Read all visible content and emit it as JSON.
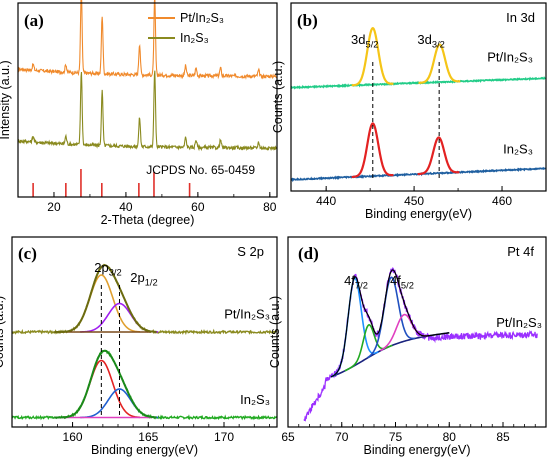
{
  "chart_data": [
    {
      "panel": "(a)",
      "type": "line",
      "xlabel": "2-Theta (degree)",
      "ylabel": "Intensity (a.u.)",
      "xlim": [
        10,
        82
      ],
      "x_ticks": [
        "20",
        "40",
        "60",
        "80"
      ],
      "legend": {
        "placement": "top-right",
        "entries": [
          "Pt/In₂S₃",
          "In₂S₃"
        ]
      },
      "reference": {
        "label": "JCPDS No. 65-0459",
        "color": "#e0302a",
        "positions": [
          14.2,
          23.3,
          27.5,
          33.3,
          43.6,
          47.8,
          57.7
        ]
      },
      "series": [
        {
          "name": "Pt/In₂S₃",
          "color": "#f08a2c",
          "offset": 0.62,
          "peaks": [
            [
              14.2,
              0.03
            ],
            [
              23.3,
              0.04
            ],
            [
              27.6,
              0.42
            ],
            [
              33.4,
              0.3
            ],
            [
              43.8,
              0.16
            ],
            [
              48.0,
              0.4
            ],
            [
              56.6,
              0.05
            ],
            [
              59.5,
              0.04
            ],
            [
              66.3,
              0.04
            ],
            [
              76.9,
              0.03
            ]
          ]
        },
        {
          "name": "In₂S₃",
          "color": "#8a8a1f",
          "offset": 0.25,
          "peaks": [
            [
              14.2,
              0.03
            ],
            [
              23.3,
              0.04
            ],
            [
              27.6,
              0.38
            ],
            [
              33.4,
              0.28
            ],
            [
              43.8,
              0.15
            ],
            [
              48.0,
              0.4
            ],
            [
              56.6,
              0.05
            ],
            [
              59.5,
              0.04
            ],
            [
              66.3,
              0.04
            ],
            [
              76.9,
              0.03
            ]
          ]
        }
      ]
    },
    {
      "panel": "(b)",
      "type": "line",
      "corner_label": "In 3d",
      "xlabel": "Binding energy(eV)",
      "ylabel": "Counts (a.u.)",
      "xlim": [
        436,
        465
      ],
      "x_ticks": [
        "440",
        "450",
        "460"
      ],
      "peak_labels": [
        "3d5/2",
        "3d3/2"
      ],
      "series": [
        {
          "name": "Pt/In₂S₃",
          "offset": 0.55,
          "slope": 0.05,
          "base_color": "#22cc88",
          "fit_color": "#f5c518",
          "peaks": [
            [
              445.3,
              0.3,
              0.62
            ],
            [
              452.9,
              0.2,
              0.62
            ]
          ]
        },
        {
          "name": "In₂S₃",
          "offset": 0.06,
          "slope": 0.06,
          "base_color": "#1f5fa0",
          "fit_color": "#e32222",
          "peaks": [
            [
              445.3,
              0.28,
              0.62
            ],
            [
              452.8,
              0.19,
              0.62
            ]
          ]
        }
      ]
    },
    {
      "panel": "(c)",
      "type": "line",
      "corner_label": "S 2p",
      "xlabel": "Binding energy(eV)",
      "ylabel": "Counts (a.u.)",
      "xlim": [
        156,
        173.5
      ],
      "x_ticks": [
        "160",
        "165",
        "170"
      ],
      "peak_labels": [
        "2p3/2",
        "2p1/2"
      ],
      "series": [
        {
          "name": "Pt/In₂S₃",
          "offset": 0.5,
          "base_color": "#8a8a1f",
          "components": [
            [
              161.9,
              0.3,
              0.75,
              "#e0a030"
            ],
            [
              163.1,
              0.15,
              0.75,
              "#a020f0"
            ]
          ]
        },
        {
          "name": "In₂S₃",
          "offset": 0.05,
          "base_color": "#22aa22",
          "components": [
            [
              161.9,
              0.3,
              0.75,
              "#e32222"
            ],
            [
              163.1,
              0.15,
              0.75,
              "#1f5fd0"
            ]
          ]
        }
      ]
    },
    {
      "panel": "(d)",
      "type": "line",
      "corner_label": "Pt 4f",
      "xlabel": "Binding energy(eV)",
      "ylabel": "Counts (a.u.)",
      "xlim": [
        65,
        89
      ],
      "x_ticks": [
        "65",
        "70",
        "75",
        "80",
        "85"
      ],
      "peak_labels": [
        "4f7/2",
        "4f5/2"
      ],
      "series": [
        {
          "name": "Pt/In₂S₃",
          "raw_color": "#9b30ff",
          "envelope_color": "#000000",
          "background_color": "#1a237e",
          "components": [
            [
              71.2,
              0.46,
              0.6,
              "#1e90ff"
            ],
            [
              72.5,
              0.17,
              0.5,
              "#22aa22"
            ],
            [
              74.6,
              0.36,
              0.65,
              "#2050c0"
            ],
            [
              75.8,
              0.14,
              0.7,
              "#e040c0"
            ]
          ]
        }
      ]
    }
  ]
}
